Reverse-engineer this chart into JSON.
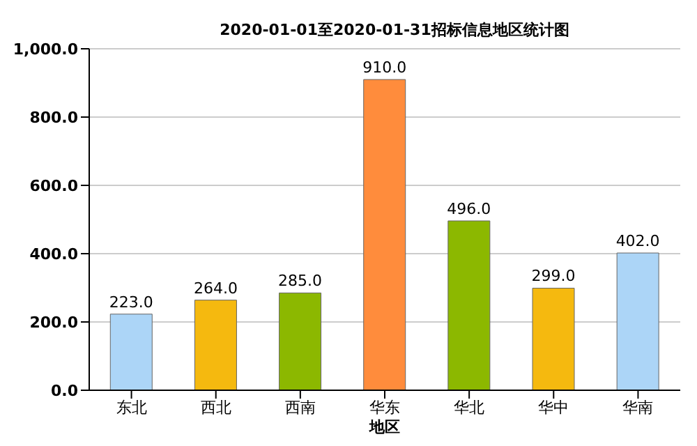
{
  "chart_data": {
    "type": "bar",
    "title": "2020-01-01至2020-01-31招标信息地区统计图",
    "xlabel": "地区",
    "categories": [
      "东北",
      "西北",
      "西南",
      "华东",
      "华北",
      "华中",
      "华南"
    ],
    "values": [
      223,
      264,
      285,
      910,
      496,
      299,
      402
    ],
    "colors": [
      "#acd5f7",
      "#f5b90f",
      "#8cb800",
      "#ff8c3c",
      "#8cb800",
      "#f5b90f",
      "#acd5f7"
    ],
    "value_labels": [
      "223.0",
      "264.0",
      "285.0",
      "910.0",
      "496.0",
      "299.0",
      "402.0"
    ],
    "ylim": [
      0,
      1000
    ],
    "yticks": [
      {
        "value": 0,
        "label": "0.0"
      },
      {
        "value": 200,
        "label": "200.0"
      },
      {
        "value": 400,
        "label": "400.0"
      },
      {
        "value": 600,
        "label": "600.0"
      },
      {
        "value": 800,
        "label": "800.0"
      },
      {
        "value": 1000,
        "label": "1,000.0"
      }
    ],
    "grid": "y"
  }
}
